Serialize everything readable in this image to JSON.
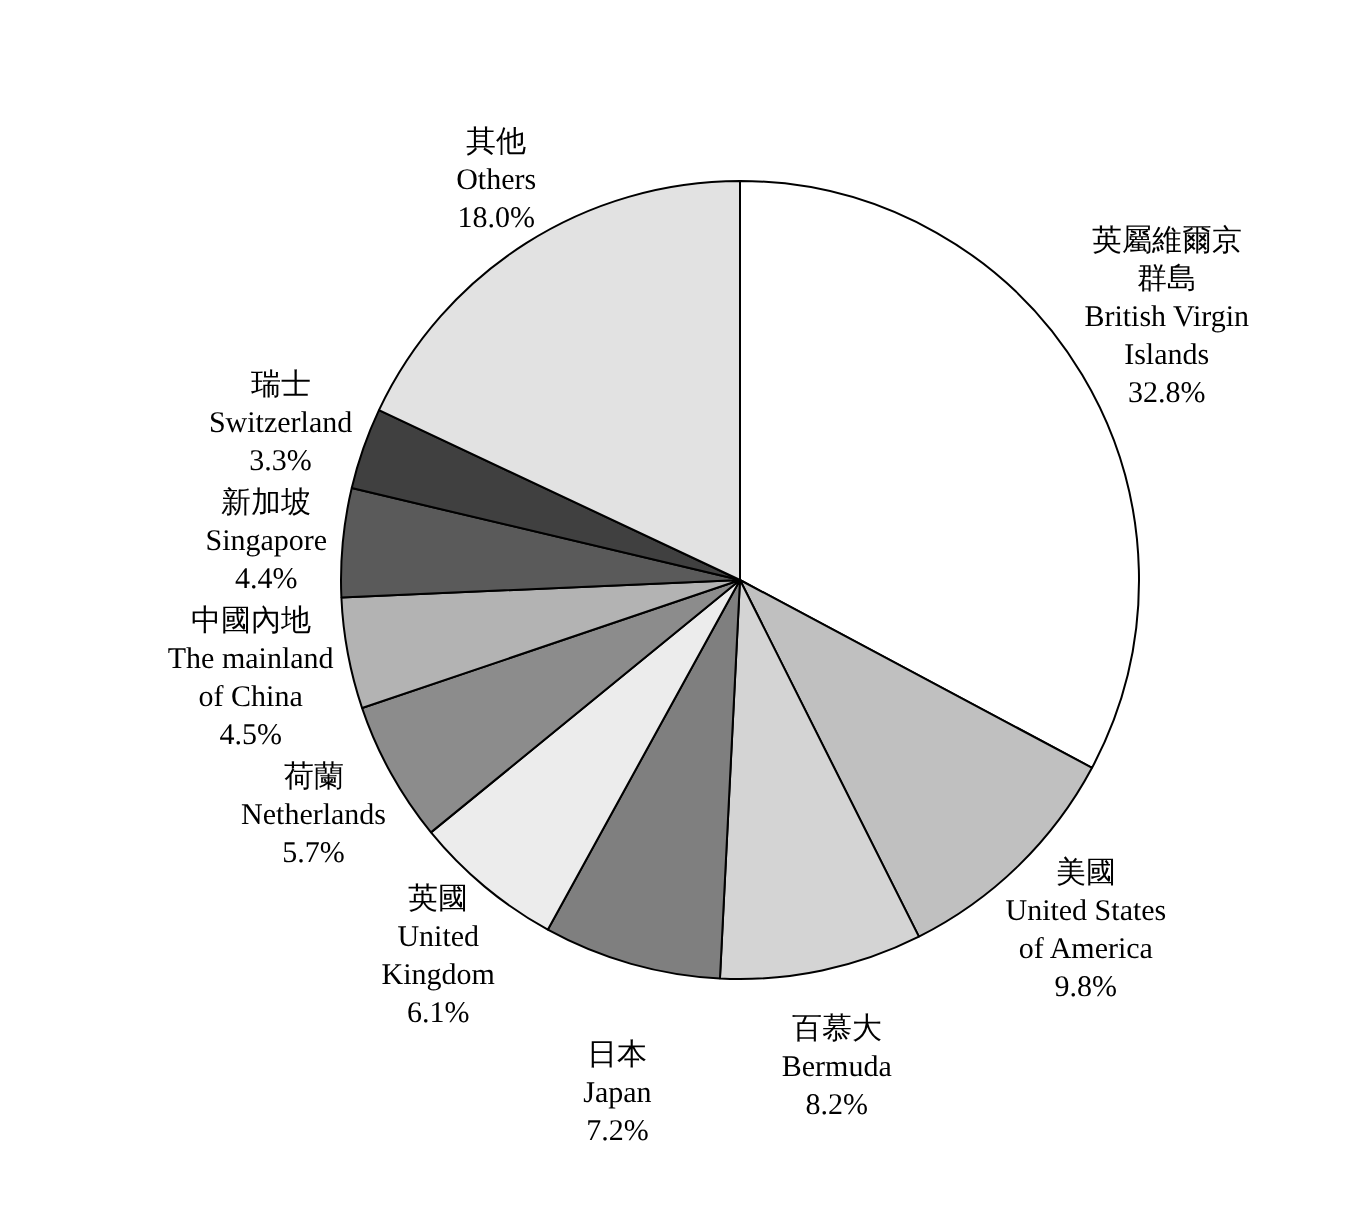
{
  "chart_data": {
    "type": "pie",
    "categories": [
      "英屬維爾京群島\nBritish Virgin\nIslands",
      "美國\nUnited States\nof America",
      "百慕大\nBermuda",
      "日本\nJapan",
      "英國\nUnited\nKingdom",
      "荷蘭\nNetherlands",
      "中國內地\nThe mainland\nof China",
      "新加坡\nSingapore",
      "瑞士\nSwitzerland",
      "其他\nOthers"
    ],
    "values": [
      32.8,
      9.8,
      8.2,
      7.2,
      6.1,
      5.7,
      4.5,
      4.4,
      3.3,
      18.0
    ],
    "value_labels": [
      "32.8%",
      "9.8%",
      "8.2%",
      "7.2%",
      "6.1%",
      "5.7%",
      "4.5%",
      "4.4%",
      "3.3%",
      "18.0%"
    ],
    "colors": [
      "#ffffff",
      "#c0c0c0",
      "#d4d4d4",
      "#7f7f7f",
      "#ececec",
      "#8c8c8c",
      "#b3b3b3",
      "#5a5a5a",
      "#404040",
      "#e2e2e2"
    ],
    "legend": false
  }
}
